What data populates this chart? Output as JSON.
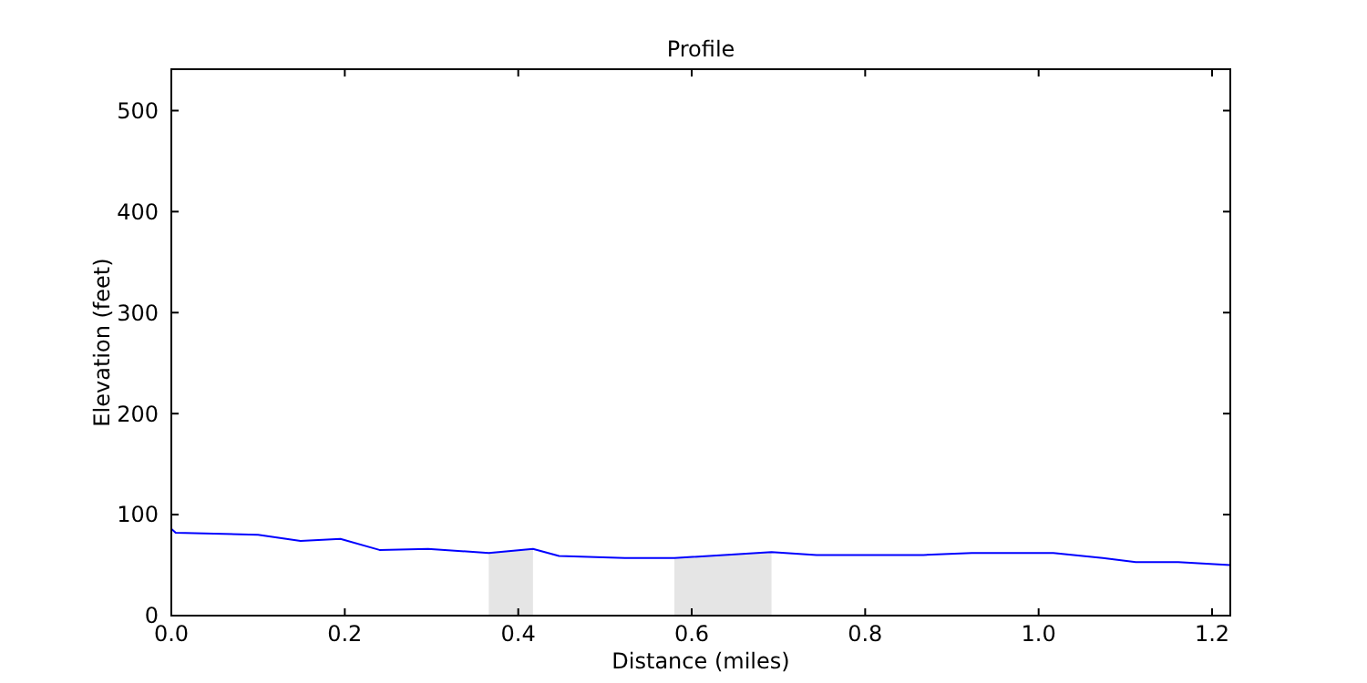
{
  "chart_data": {
    "type": "line",
    "title": "Profile",
    "xlabel": "Distance (miles)",
    "ylabel": "Elevation (feet)",
    "xlim": [
      0,
      1.221
    ],
    "ylim": [
      0,
      541
    ],
    "xticks": [
      {
        "value": 0,
        "label": "0.0"
      },
      {
        "value": 0.2,
        "label": "0.2"
      },
      {
        "value": 0.4,
        "label": "0.4"
      },
      {
        "value": 0.6,
        "label": "0.6"
      },
      {
        "value": 0.8,
        "label": "0.8"
      },
      {
        "value": 1.0,
        "label": "1.0"
      },
      {
        "value": 1.2,
        "label": "1.2"
      }
    ],
    "yticks": [
      0,
      100,
      200,
      300,
      400,
      500
    ],
    "grid": false,
    "series": [
      {
        "type": "area",
        "color": "#e5e5e5",
        "x": [
          0.366,
          0.417
        ],
        "values": [
          62,
          66
        ]
      },
      {
        "type": "area",
        "color": "#e5e5e5",
        "x": [
          0.58,
          0.692
        ],
        "values": [
          57,
          63
        ]
      },
      {
        "color": "#0000ff",
        "x": [
          0,
          0.005,
          0.1,
          0.149,
          0.195,
          0.24,
          0.296,
          0.366,
          0.417,
          0.447,
          0.523,
          0.58,
          0.692,
          0.744,
          0.867,
          0.923,
          1.017,
          1.074,
          1.112,
          1.161,
          1.221
        ],
        "values": [
          86,
          82,
          80,
          74,
          76,
          65,
          66,
          62,
          66,
          59,
          57,
          57,
          63,
          60,
          60,
          62,
          62,
          57,
          53,
          53,
          50
        ]
      }
    ]
  }
}
